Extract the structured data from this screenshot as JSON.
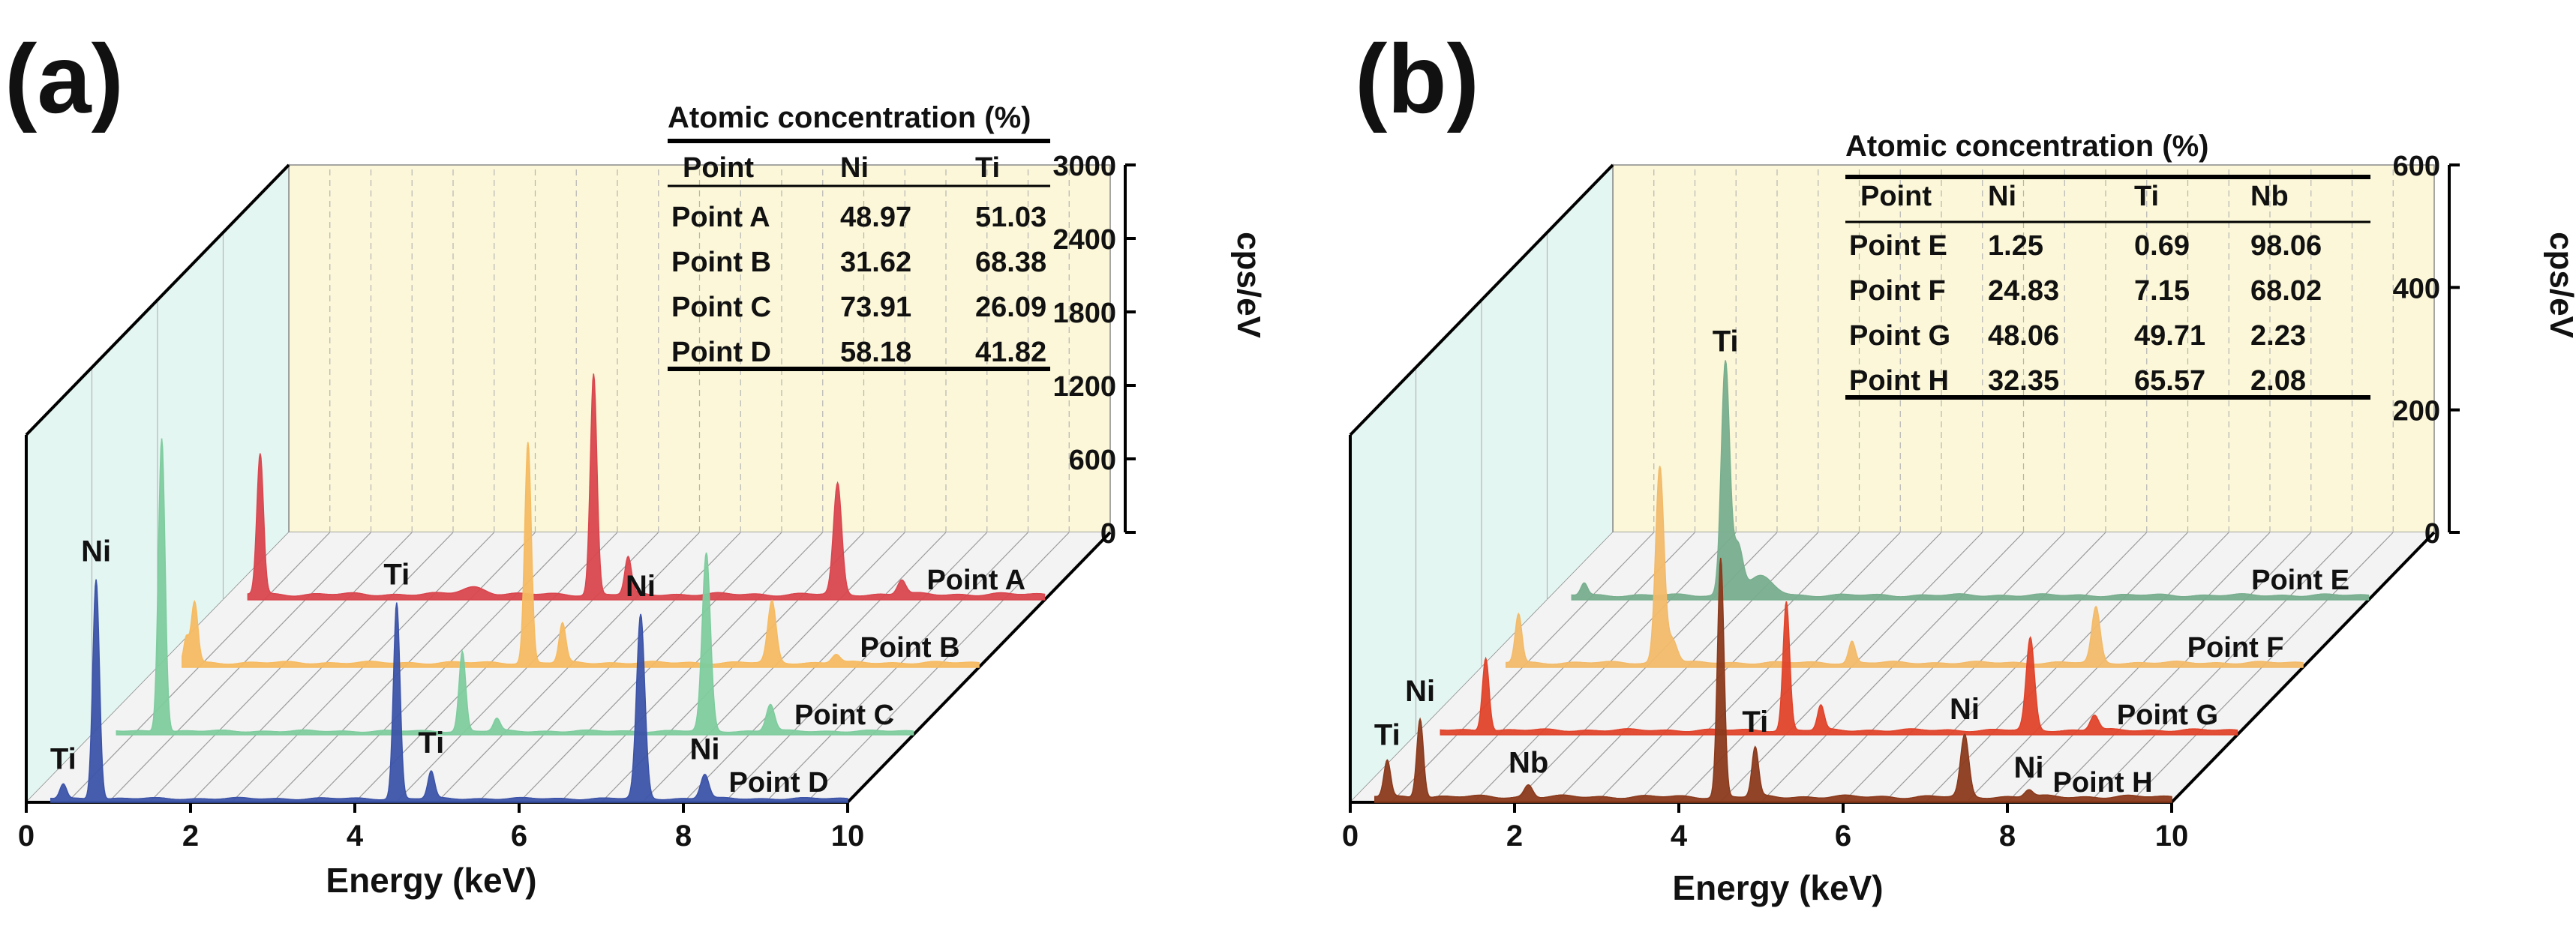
{
  "chart_data": [
    {
      "panel_label": "(a)",
      "type": "line",
      "title": "",
      "xlabel": "Energy (keV)",
      "ylabel": "cps/eV",
      "xlim": [
        0,
        10
      ],
      "ylim": [
        0,
        3000
      ],
      "x_ticks": [
        "0",
        "2",
        "4",
        "6",
        "8",
        "10"
      ],
      "y_ticks": [
        "0",
        "600",
        "1200",
        "1800",
        "2400",
        "3000"
      ],
      "series": [
        {
          "name": "Point A",
          "color": "#d9464e",
          "baseline": 60,
          "peaks": [
            [
              0.45,
              1150,
              0.04
            ],
            [
              3.05,
              60,
              0.15
            ],
            [
              4.51,
              1800,
              0.04
            ],
            [
              4.93,
              300,
              0.04
            ],
            [
              7.48,
              900,
              0.05
            ],
            [
              8.26,
              120,
              0.05
            ]
          ]
        },
        {
          "name": "Point B",
          "color": "#f6bb62",
          "baseline": 50,
          "peaks": [
            [
              0.35,
              200,
              0.03
            ],
            [
              0.45,
              500,
              0.04
            ],
            [
              4.51,
              1800,
              0.04
            ],
            [
              4.93,
              320,
              0.04
            ],
            [
              7.48,
              500,
              0.05
            ],
            [
              8.26,
              70,
              0.05
            ]
          ]
        },
        {
          "name": "Point C",
          "color": "#7ecc9e",
          "baseline": 40,
          "peaks": [
            [
              0.85,
              2400,
              0.04
            ],
            [
              4.51,
              650,
              0.04
            ],
            [
              4.93,
              100,
              0.04
            ],
            [
              7.48,
              1450,
              0.05
            ],
            [
              8.26,
              220,
              0.05
            ]
          ]
        },
        {
          "name": "Point D",
          "color": "#3c53a8",
          "baseline": 40,
          "peaks": [
            [
              0.45,
              120,
              0.04
            ],
            [
              0.85,
              1800,
              0.04
            ],
            [
              4.51,
              1600,
              0.04
            ],
            [
              4.93,
              220,
              0.04
            ],
            [
              7.48,
              1500,
              0.05
            ],
            [
              8.26,
              200,
              0.05
            ]
          ]
        }
      ],
      "peak_labels": [
        {
          "text": "Ni",
          "series": 3,
          "x": 0.85,
          "dy": 60
        },
        {
          "text": "Ti",
          "series": 3,
          "x": 0.45,
          "dy": 50
        },
        {
          "text": "Ti",
          "series": 3,
          "x": 4.51,
          "dy": 60
        },
        {
          "text": "Ti",
          "series": 3,
          "x": 4.93,
          "dy": 60
        },
        {
          "text": "Ni",
          "series": 3,
          "x": 7.48,
          "dy": 60
        },
        {
          "text": "Ni",
          "series": 3,
          "x": 8.26,
          "dy": 50
        }
      ],
      "table": {
        "title": "Atomic concentration (%)",
        "columns": [
          "Point",
          "Ni",
          "Ti"
        ],
        "rows": [
          [
            "Point A",
            "48.97",
            "51.03"
          ],
          [
            "Point B",
            "31.62",
            "68.38"
          ],
          [
            "Point C",
            "73.91",
            "26.09"
          ],
          [
            "Point D",
            "58.18",
            "41.82"
          ]
        ]
      }
    },
    {
      "panel_label": "(b)",
      "type": "line",
      "title": "",
      "xlabel": "Energy (keV)",
      "ylabel": "cps/eV",
      "xlim": [
        0,
        10
      ],
      "ylim": [
        0,
        600
      ],
      "x_ticks": [
        "0",
        "2",
        "4",
        "6",
        "8",
        "10"
      ],
      "y_ticks": [
        "0",
        "200",
        "400",
        "600"
      ],
      "series": [
        {
          "name": "Point E",
          "color": "#78ae8e",
          "baseline": 10,
          "peaks": [
            [
              0.45,
              20,
              0.04
            ],
            [
              2.17,
              380,
              0.05
            ],
            [
              2.32,
              80,
              0.06
            ],
            [
              2.6,
              30,
              0.15
            ]
          ]
        },
        {
          "name": "Point F",
          "color": "#f2ba6a",
          "baseline": 10,
          "peaks": [
            [
              0.45,
              80,
              0.04
            ],
            [
              2.17,
              320,
              0.05
            ],
            [
              2.32,
              40,
              0.06
            ],
            [
              4.51,
              35,
              0.04
            ],
            [
              7.48,
              90,
              0.05
            ]
          ]
        },
        {
          "name": "Point G",
          "color": "#e0432a",
          "baseline": 10,
          "peaks": [
            [
              0.85,
              120,
              0.04
            ],
            [
              4.51,
              210,
              0.04
            ],
            [
              4.93,
              40,
              0.04
            ],
            [
              7.48,
              150,
              0.05
            ],
            [
              8.26,
              25,
              0.05
            ]
          ]
        },
        {
          "name": "Point H",
          "color": "#8b3a1c",
          "baseline": 12,
          "peaks": [
            [
              0.45,
              60,
              0.04
            ],
            [
              0.85,
              130,
              0.04
            ],
            [
              2.17,
              20,
              0.05
            ],
            [
              4.51,
              390,
              0.04
            ],
            [
              4.93,
              80,
              0.04
            ],
            [
              7.48,
              100,
              0.05
            ],
            [
              8.26,
              12,
              0.05
            ]
          ]
        }
      ],
      "peak_labels": [
        {
          "text": "Ti",
          "series": 0,
          "x": 2.17,
          "dy": 30
        },
        {
          "text": "Ni",
          "series": 3,
          "x": 0.85,
          "dy": 60
        },
        {
          "text": "Ti",
          "series": 3,
          "x": 0.45,
          "dy": 50
        },
        {
          "text": "Nb",
          "series": 3,
          "x": 2.17,
          "dy": 40
        },
        {
          "text": "Ti",
          "series": 3,
          "x": 4.93,
          "dy": 50
        },
        {
          "text": "Ni",
          "series": 3,
          "x": 7.48,
          "dy": 50
        },
        {
          "text": "Ni",
          "series": 3,
          "x": 8.26,
          "dy": 40
        }
      ],
      "table": {
        "title": "Atomic concentration (%)",
        "columns": [
          "Point",
          "Ni",
          "Ti",
          "Nb"
        ],
        "rows": [
          [
            "Point E",
            "1.25",
            "0.69",
            "98.06"
          ],
          [
            "Point F",
            "24.83",
            "7.15",
            "68.02"
          ],
          [
            "Point G",
            "48.06",
            "49.71",
            "2.23"
          ],
          [
            "Point H",
            "32.35",
            "65.57",
            "2.08"
          ]
        ]
      }
    }
  ]
}
